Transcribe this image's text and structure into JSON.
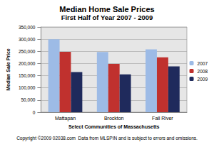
{
  "chart_data": {
    "type": "bar",
    "title": "Median Home Sale Prices",
    "subtitle": "First Half of Year 2007 - 2009",
    "x_label": "Select Communities of Massachusetts",
    "y_label": "Median Sale Price",
    "annotations": [
      "Copyright ©2009 02038.com  Data from MLSPIN and is subject to errors and omissions."
    ],
    "categories": [
      "Mattapan",
      "Brockton",
      "Fall River"
    ],
    "series": [
      {
        "name": "2007",
        "color": "#9dbbe6",
        "values": [
          300000,
          247000,
          258000
        ]
      },
      {
        "name": "2008",
        "color": "#c0312e",
        "values": [
          248000,
          198000,
          225000
        ]
      },
      {
        "name": "2009",
        "color": "#1f2a5c",
        "values": [
          165000,
          155000,
          188000
        ]
      }
    ],
    "ylim": [
      0,
      350000
    ],
    "yticks": [
      0,
      {
        "value": 50000,
        "label": "50,000"
      },
      {
        "value": 100000,
        "label": "100,000"
      },
      {
        "value": 150000,
        "label": "150,000"
      },
      {
        "value": 200000,
        "label": "200,000"
      },
      {
        "value": 250000,
        "label": "250,000"
      },
      {
        "value": 300000,
        "label": "300,000"
      },
      {
        "value": 350000,
        "label": "350,000"
      }
    ],
    "grid": true,
    "legend": "right"
  }
}
